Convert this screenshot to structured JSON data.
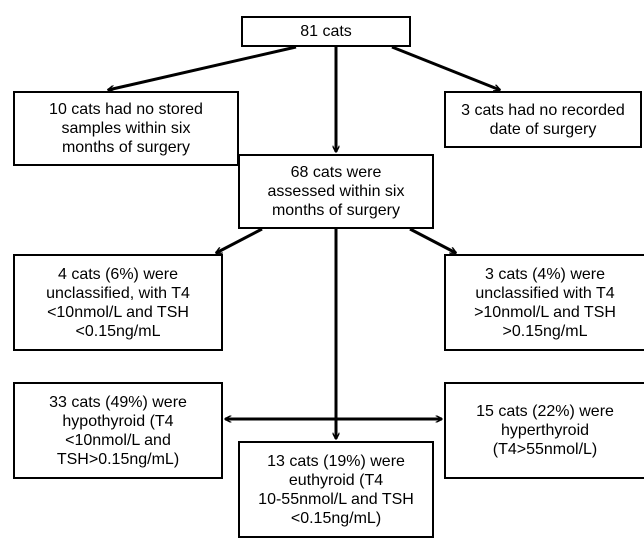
{
  "flowchart": {
    "nodes": {
      "total": "81 cats",
      "no_stored_samples": "10 cats had no stored\nsamples within six\nmonths of surgery",
      "no_recorded_date": "3 cats had no recorded\ndate of surgery",
      "assessed": "68 cats were\nassessed within six\nmonths of surgery",
      "unclassified_low": "4 cats (6%) were\nunclassified, with T4\n<10nmol/L and TSH\n<0.15ng/mL",
      "unclassified_high": "3 cats (4%) were\nunclassified with T4\n>10nmol/L and TSH\n>0.15ng/mL",
      "hypothyroid": "33 cats (49%) were\nhypothyroid (T4\n<10nmol/L and\nTSH>0.15ng/mL)",
      "hyperthyroid": "15 cats (22%) were\nhyperthyroid\n(T4>55nmol/L)",
      "euthyroid": "13 cats (19%) were\neuthyroid (T4\n10-55nmol/L and TSH\n<0.15ng/mL)"
    }
  },
  "colors": {
    "stroke": "#000000",
    "box_fill": "#ffffff",
    "text": "#000000"
  }
}
